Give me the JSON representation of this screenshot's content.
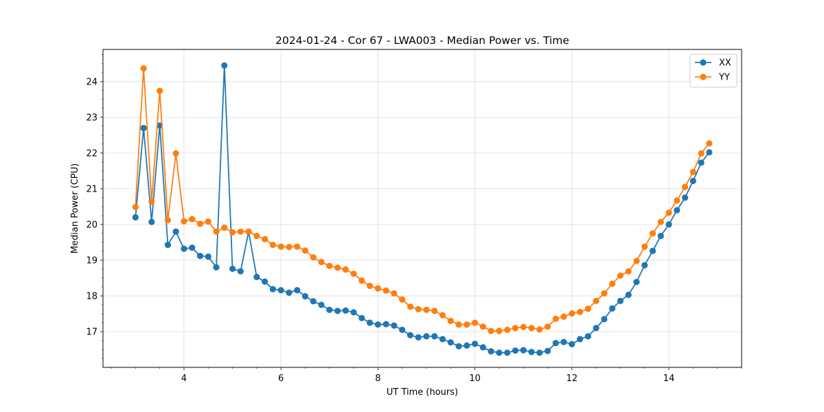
{
  "chart_data": {
    "type": "line",
    "title": "2024-01-24 - Cor 67 - LWA003 - Median Power vs. Time",
    "xlabel": "UT Time (hours)",
    "ylabel": "Median Power (CPU)",
    "xlim": [
      2.33,
      15.5
    ],
    "ylim": [
      16.0,
      24.9
    ],
    "xticks": [
      4,
      6,
      8,
      10,
      12,
      14
    ],
    "yticks": [
      17,
      18,
      19,
      20,
      21,
      22,
      23,
      24
    ],
    "grid": true,
    "legend_position": "upper right",
    "x": [
      3.0,
      3.167,
      3.333,
      3.5,
      3.667,
      3.833,
      4.0,
      4.167,
      4.333,
      4.5,
      4.667,
      4.833,
      5.0,
      5.167,
      5.333,
      5.5,
      5.667,
      5.833,
      6.0,
      6.167,
      6.333,
      6.5,
      6.667,
      6.833,
      7.0,
      7.167,
      7.333,
      7.5,
      7.667,
      7.833,
      8.0,
      8.167,
      8.333,
      8.5,
      8.667,
      8.833,
      9.0,
      9.167,
      9.333,
      9.5,
      9.667,
      9.833,
      10.0,
      10.167,
      10.333,
      10.5,
      10.667,
      10.833,
      11.0,
      11.167,
      11.333,
      11.5,
      11.667,
      11.833,
      12.0,
      12.167,
      12.333,
      12.5,
      12.667,
      12.833,
      13.0,
      13.167,
      13.333,
      13.5,
      13.667,
      13.833,
      14.0,
      14.167,
      14.333,
      14.5,
      14.667,
      14.833
    ],
    "series": [
      {
        "name": "XX",
        "color": "#1f77b4",
        "values": [
          20.2,
          22.7,
          20.07,
          22.77,
          19.43,
          19.8,
          19.32,
          19.35,
          19.12,
          19.1,
          18.8,
          24.45,
          18.76,
          18.69,
          19.8,
          18.53,
          18.4,
          18.19,
          18.16,
          18.09,
          18.16,
          17.99,
          17.85,
          17.75,
          17.61,
          17.58,
          17.59,
          17.54,
          17.38,
          17.25,
          17.2,
          17.21,
          17.17,
          17.05,
          16.9,
          16.84,
          16.87,
          16.87,
          16.79,
          16.7,
          16.59,
          16.61,
          16.66,
          16.56,
          16.45,
          16.41,
          16.41,
          16.47,
          16.48,
          16.43,
          16.41,
          16.46,
          16.68,
          16.71,
          16.65,
          16.79,
          16.87,
          17.1,
          17.35,
          17.65,
          17.86,
          18.03,
          18.39,
          18.86,
          19.26,
          19.68,
          20.0,
          20.4,
          20.75,
          21.22,
          21.73,
          22.02
        ]
      },
      {
        "name": "YY",
        "color": "#ff7f0e",
        "values": [
          20.49,
          24.37,
          20.64,
          23.74,
          20.12,
          21.99,
          20.09,
          20.15,
          20.02,
          20.08,
          19.8,
          19.91,
          19.78,
          19.8,
          19.8,
          19.68,
          19.59,
          19.43,
          19.38,
          19.37,
          19.38,
          19.27,
          19.08,
          18.95,
          18.84,
          18.79,
          18.74,
          18.62,
          18.43,
          18.28,
          18.21,
          18.15,
          18.07,
          17.9,
          17.7,
          17.63,
          17.61,
          17.58,
          17.46,
          17.3,
          17.2,
          17.2,
          17.25,
          17.14,
          17.02,
          17.02,
          17.05,
          17.1,
          17.13,
          17.1,
          17.06,
          17.14,
          17.36,
          17.42,
          17.51,
          17.55,
          17.64,
          17.86,
          18.07,
          18.34,
          18.57,
          18.69,
          18.98,
          19.38,
          19.75,
          20.07,
          20.33,
          20.67,
          21.05,
          21.47,
          21.99,
          22.27
        ]
      }
    ]
  }
}
